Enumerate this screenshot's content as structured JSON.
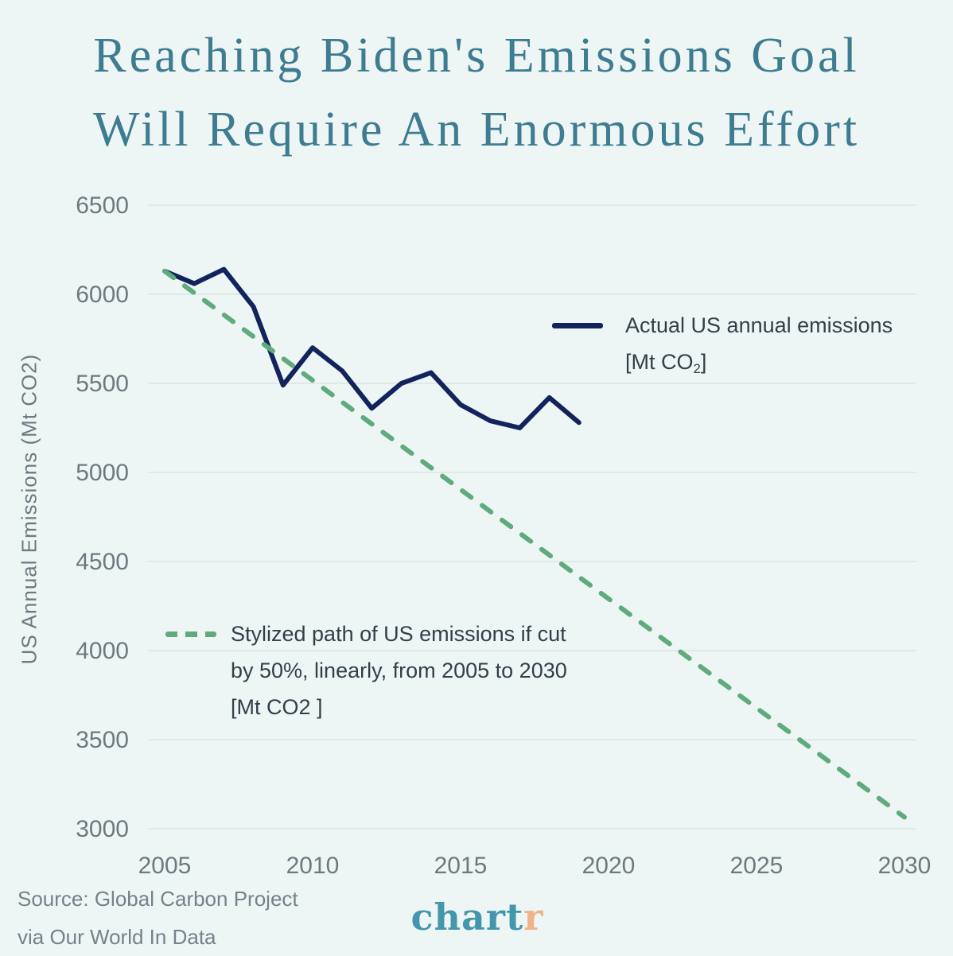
{
  "title": {
    "line1": "Reaching Biden's Emissions Goal",
    "line2": "Will Require An Enormous Effort"
  },
  "colors": {
    "background": "#edf6f4",
    "title": "#3e7c91",
    "actual_line": "#13235c",
    "target_line": "#5fab7d",
    "gridline": "#dfe9e6",
    "tick_text": "#6d797f",
    "legend_text": "#333f49",
    "source_text": "#75828a",
    "logo_teal": "#4496ad",
    "logo_accent": "#efb289"
  },
  "chart_data": {
    "type": "line",
    "title": "Reaching Biden's Emissions Goal Will Require An Enormous Effort",
    "xlabel": "",
    "ylabel": "US Annual Emissions (Mt CO2)",
    "xlim": [
      2005,
      2030
    ],
    "ylim": [
      3000,
      6500
    ],
    "xticks": [
      2005,
      2010,
      2015,
      2020,
      2025,
      2030
    ],
    "yticks": [
      3000,
      3500,
      4000,
      4500,
      5000,
      5500,
      6000,
      6500
    ],
    "grid": "horizontal",
    "legend_position": "inline annotations",
    "series": [
      {
        "name": "Actual US annual emissions [Mt CO2]",
        "data_name": "actual-emissions-line",
        "style": "solid",
        "color": "#13235c",
        "x": [
          2005,
          2006,
          2007,
          2008,
          2009,
          2010,
          2011,
          2012,
          2013,
          2014,
          2015,
          2016,
          2017,
          2018,
          2019
        ],
        "y": [
          6130,
          6060,
          6140,
          5930,
          5490,
          5700,
          5570,
          5360,
          5500,
          5560,
          5380,
          5290,
          5250,
          5420,
          5280
        ]
      },
      {
        "name": "Stylized path of US emissions if cut by 50%, linearly, from 2005 to 2030 [Mt CO2]",
        "data_name": "target-path-line",
        "style": "dashed",
        "color": "#5fab7d",
        "x": [
          2005,
          2030
        ],
        "y": [
          6130,
          3065
        ]
      }
    ]
  },
  "legend_actual": {
    "line1": "Actual US annual emissions",
    "unit_prefix": "[Mt CO",
    "unit_sub": "2",
    "unit_suffix": "]"
  },
  "legend_target": {
    "line1": "Stylized path of US emissions if cut",
    "line2": "by 50%, linearly, from 2005 to 2030",
    "line3": "[Mt CO2 ]"
  },
  "footer": {
    "source_line1": "Source: Global Carbon Project",
    "source_line2": "via Our World In Data",
    "logo_main": "chart",
    "logo_accent": "r"
  }
}
